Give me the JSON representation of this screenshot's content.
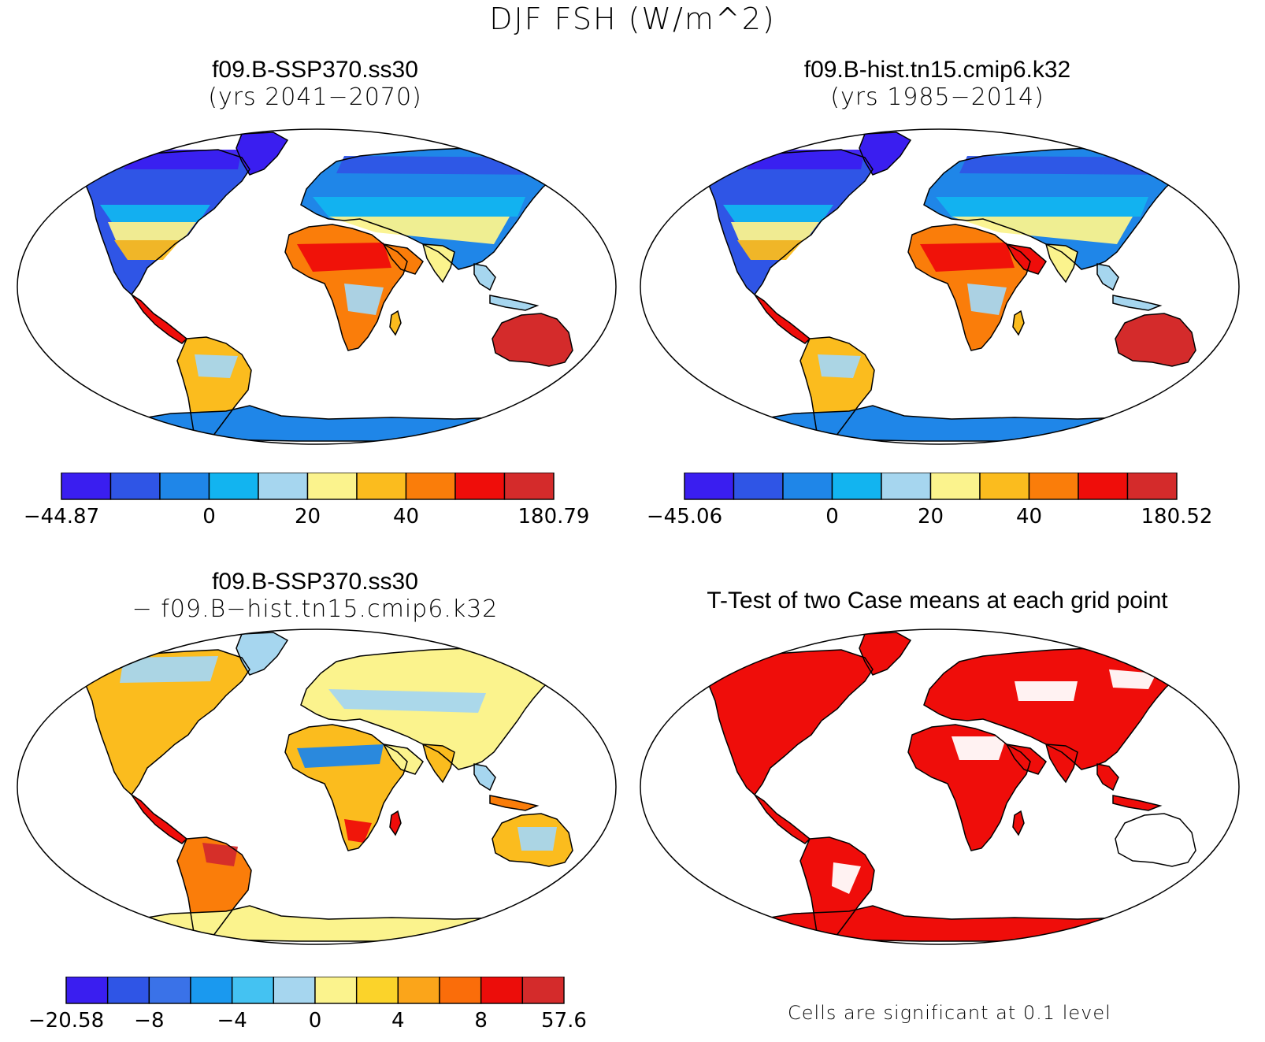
{
  "figure": {
    "title": "DJF FSH (W/m^2)"
  },
  "panels": {
    "top_left": {
      "case": "f09.B-SSP370.ss30",
      "years": "(yrs 2041−2070)",
      "colorbar": {
        "colors": [
          "#3a1ef0",
          "#2f55e6",
          "#1f86e8",
          "#12b4f0",
          "#a6d6ef",
          "#fbf38d",
          "#fbbc1e",
          "#fa7d0a",
          "#ef0d0a",
          "#d42b2b"
        ],
        "labels": [
          "−44.87",
          "0",
          "20",
          "40",
          "180.79"
        ],
        "label_edges": [
          0,
          3,
          5,
          7,
          10
        ]
      }
    },
    "top_right": {
      "case": "f09.B-hist.tn15.cmip6.k32",
      "years": "(yrs 1985−2014)",
      "colorbar": {
        "colors": [
          "#3a1ef0",
          "#2f55e6",
          "#1f86e8",
          "#12b4f0",
          "#a6d6ef",
          "#fbf38d",
          "#fbbc1e",
          "#fa7d0a",
          "#ef0d0a",
          "#d42b2b"
        ],
        "labels": [
          "−45.06",
          "0",
          "20",
          "40",
          "180.52"
        ],
        "label_edges": [
          0,
          3,
          5,
          7,
          10
        ]
      }
    },
    "bottom_left": {
      "case": "f09.B-SSP370.ss30",
      "minus_case": "− f09.B−hist.tn15.cmip6.k32",
      "colorbar": {
        "colors": [
          "#3a1ef0",
          "#2f55e6",
          "#3a72e8",
          "#1a99ef",
          "#44c2f2",
          "#a6d6ef",
          "#fbf38d",
          "#fbd32a",
          "#fba51a",
          "#fa6d0a",
          "#ec0d0a",
          "#d42b2b"
        ],
        "labels": [
          "−20.58",
          "−8",
          "−4",
          "0",
          "4",
          "8",
          "57.6"
        ],
        "label_edges": [
          0,
          2,
          4,
          6,
          8,
          10,
          12
        ]
      }
    },
    "bottom_right": {
      "title": "T-Test of two Case means at each grid point",
      "note": "Cells are significant at 0.1 level",
      "signif_color": "#ef0d0a"
    }
  },
  "map_colors": {
    "ocean": "#ffffff",
    "coast": "#000000",
    "arctic": "#3a1ef0",
    "highlat": "#2f55e6",
    "midlat": "#1f86e8",
    "cool": "#12b4f0",
    "lightblue": "#a6d6ef",
    "yellow": "#fbf38d",
    "gold": "#fbbc1e",
    "orange": "#fa7d0a",
    "red": "#ef0d0a",
    "darkred": "#d42b2b"
  }
}
